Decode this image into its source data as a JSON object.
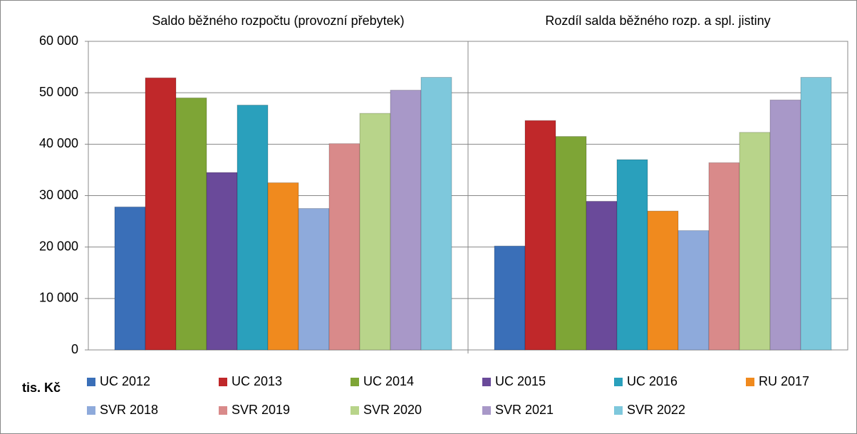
{
  "chart_data": {
    "type": "bar",
    "categories": [
      "Saldo běžného rozpočtu (provozní přebytek)",
      "Rozdíl salda běžného rozp. a spl. jistiny"
    ],
    "ylabel": "tis. Kč",
    "ylim": [
      0,
      60000
    ],
    "yticks": [
      0,
      {
        "value": 10000,
        "label": "10 000"
      },
      {
        "value": 20000,
        "label": "20 000"
      },
      {
        "value": 30000,
        "label": "30 000"
      },
      {
        "value": 40000,
        "label": "40 000"
      },
      {
        "value": 50000,
        "label": "50 000"
      },
      {
        "value": 60000,
        "label": "60 000"
      }
    ],
    "grid": true,
    "series": [
      {
        "name": "UC 2012",
        "color": "#3a6fb8",
        "values": [
          27800,
          20200
        ]
      },
      {
        "name": "UC 2013",
        "color": "#c0282a",
        "values": [
          52900,
          44600
        ]
      },
      {
        "name": "UC 2014",
        "color": "#7ea536",
        "values": [
          49000,
          41500
        ]
      },
      {
        "name": "UC 2015",
        "color": "#6a4a9a",
        "values": [
          34500,
          28900
        ]
      },
      {
        "name": "UC 2016",
        "color": "#2aa0bc",
        "values": [
          47600,
          37000
        ]
      },
      {
        "name": "RU 2017",
        "color": "#f08a1e",
        "values": [
          32500,
          27000
        ]
      },
      {
        "name": "SVR 2018",
        "color": "#8eaadb",
        "values": [
          27500,
          23200
        ]
      },
      {
        "name": "SVR 2019",
        "color": "#d98a8a",
        "values": [
          40100,
          36400
        ]
      },
      {
        "name": "SVR 2020",
        "color": "#b8d48a",
        "values": [
          46000,
          42300
        ]
      },
      {
        "name": "SVR 2021",
        "color": "#a898c8",
        "values": [
          50500,
          48600
        ]
      },
      {
        "name": "SVR 2022",
        "color": "#7ec8dc",
        "values": [
          53000,
          53000
        ]
      }
    ]
  }
}
